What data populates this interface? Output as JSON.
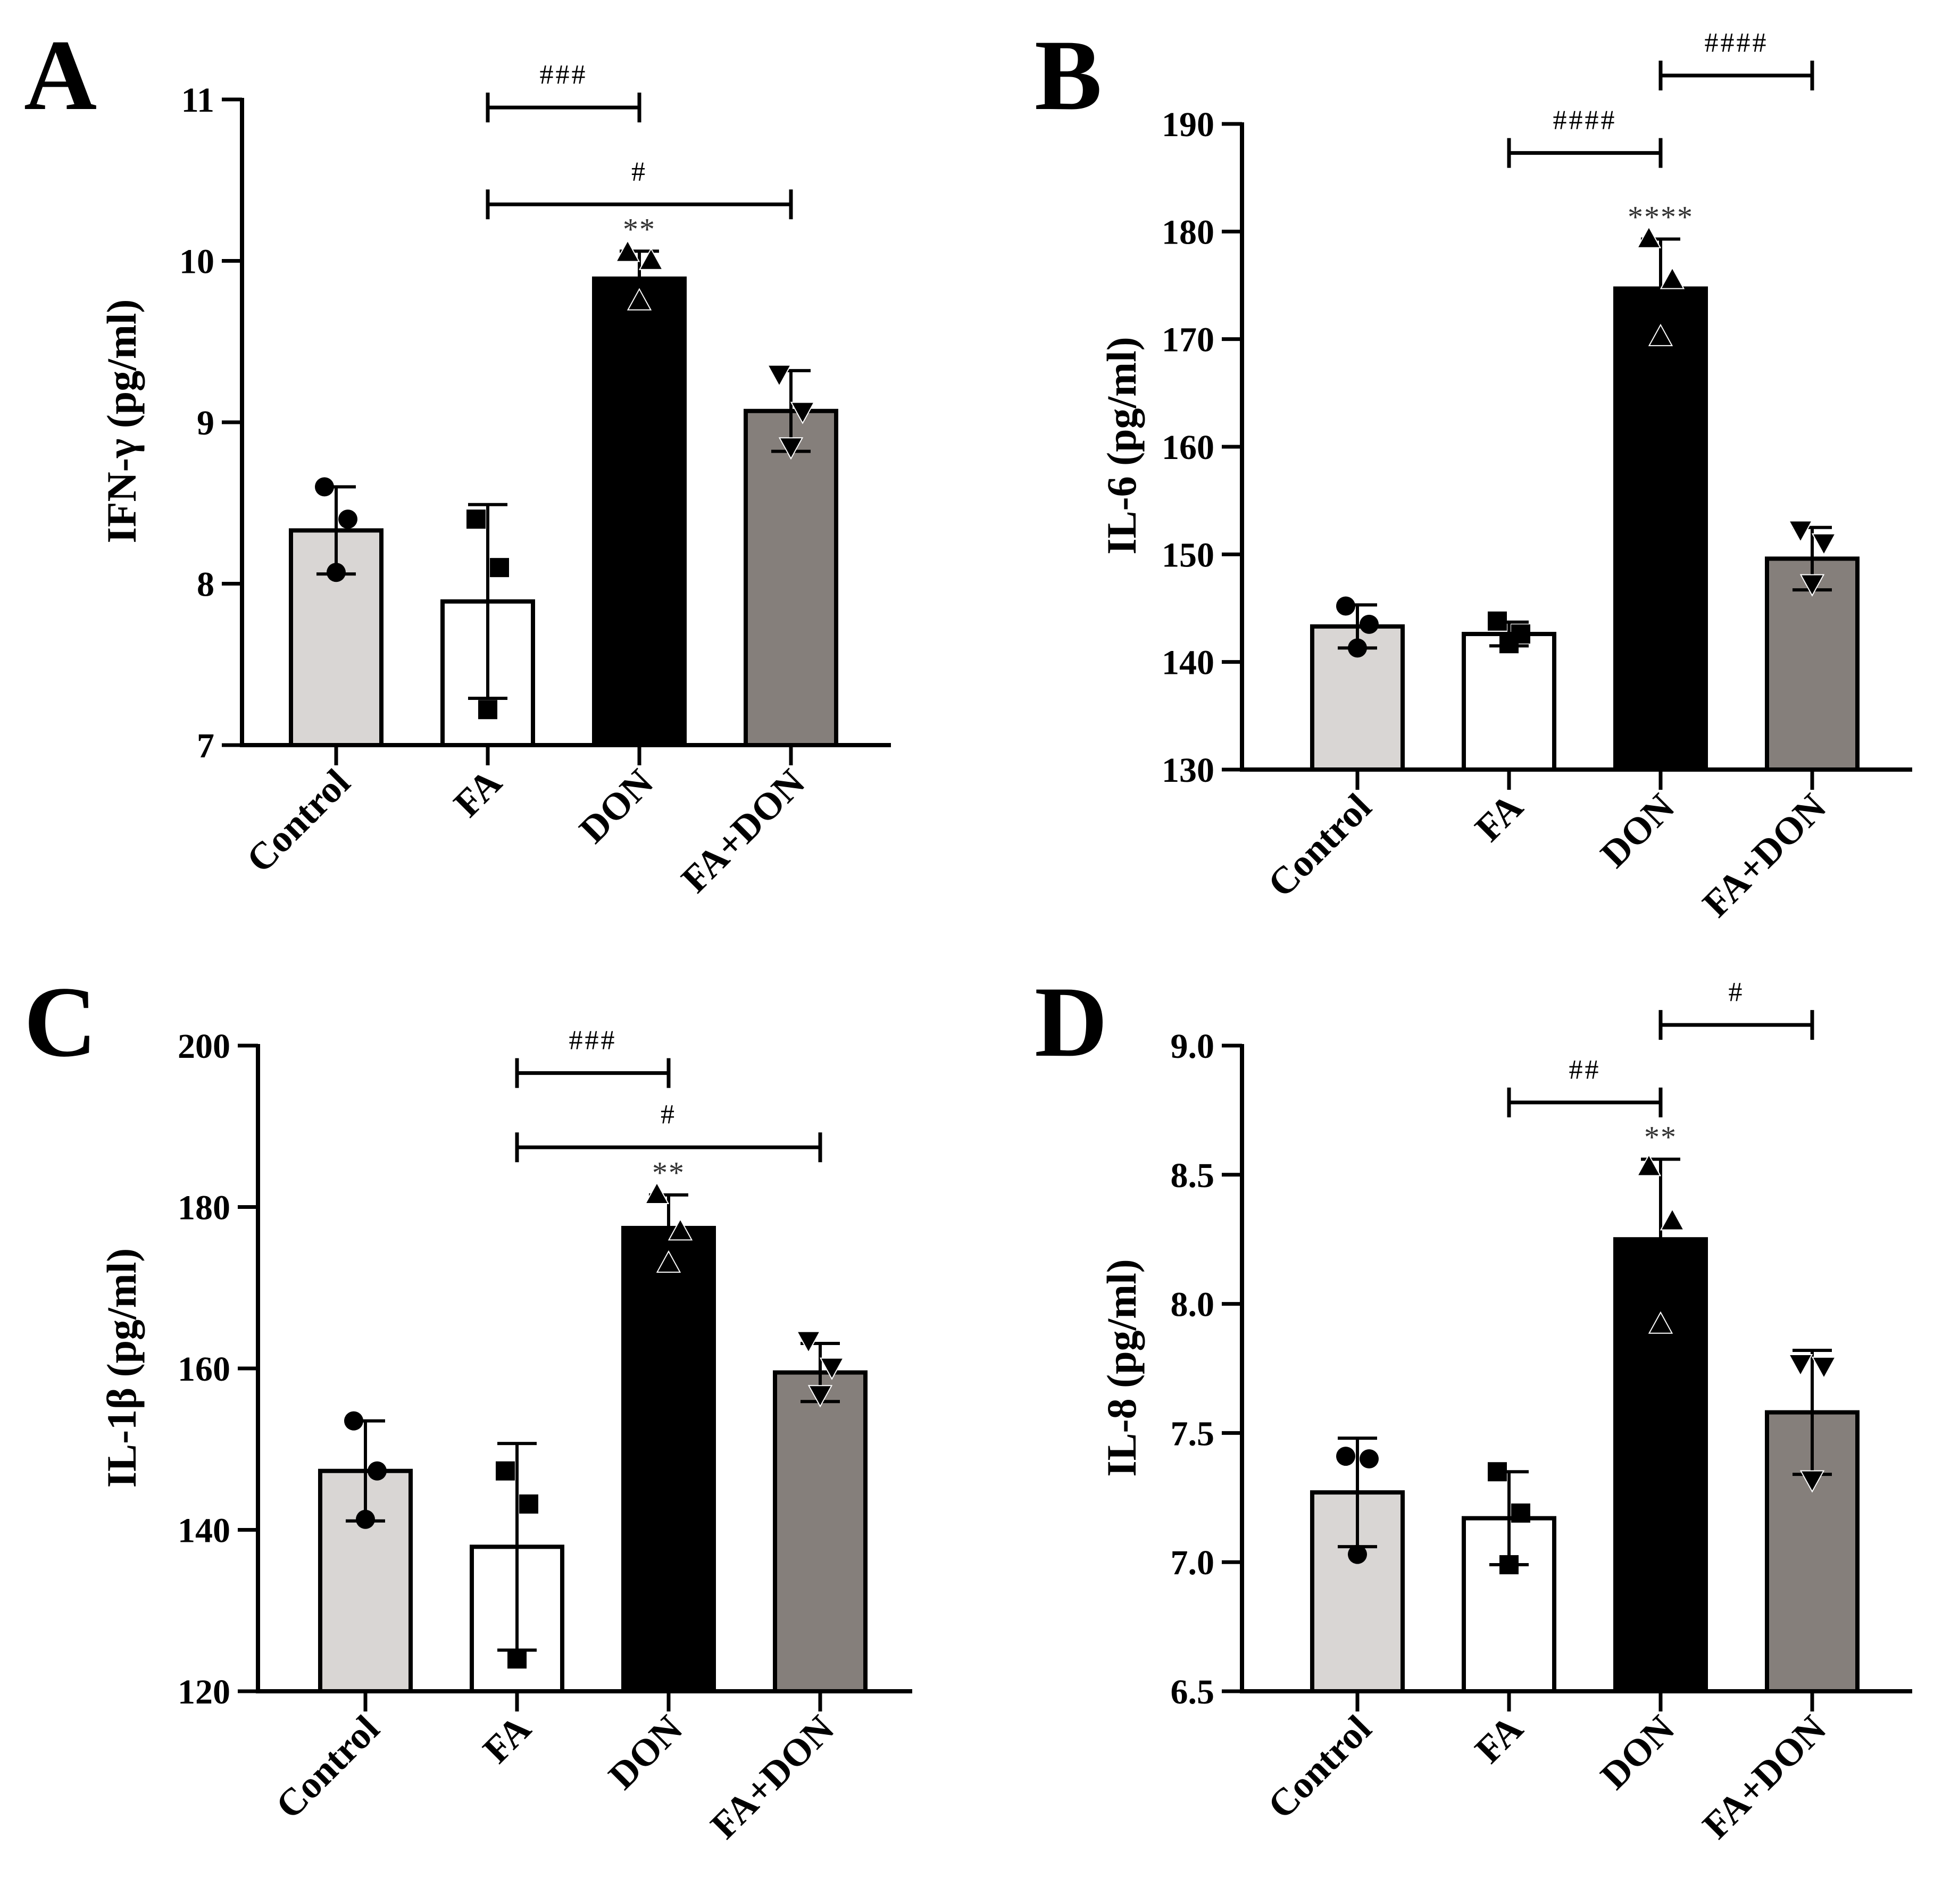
{
  "figure": {
    "background": "#ffffff",
    "axis_color": "#000000"
  },
  "chart_data": [
    {
      "panel": "A",
      "type": "bar",
      "ylabel": "IFN-γ (pg/ml)",
      "ylim": [
        7,
        11
      ],
      "yticks": [
        7,
        8,
        9,
        10,
        11
      ],
      "tick_labels": [
        "7",
        "8",
        "9",
        "10",
        "11"
      ],
      "categories": [
        "Control",
        "FA",
        "DON",
        "FA+DON"
      ],
      "values": [
        8.33,
        7.89,
        9.89,
        9.07
      ],
      "errors": [
        0.27,
        0.6,
        0.17,
        0.25
      ],
      "points": [
        [
          8.6,
          8.4,
          8.07
        ],
        [
          8.4,
          8.1,
          7.22
        ],
        [
          10.05,
          10.0,
          9.75
        ],
        [
          9.3,
          9.07,
          8.85
        ]
      ],
      "markers": [
        "circle",
        "square",
        "triangle-up",
        "triangle-down"
      ],
      "colors": [
        "#d9d6d4",
        "#ffffff",
        "#000000",
        "#857f7b"
      ],
      "stars": [
        "",
        "",
        "**",
        ""
      ],
      "brackets": [
        {
          "from": 1,
          "to": 2,
          "y": 10.95,
          "label": "###"
        },
        {
          "from": 1,
          "to": 3,
          "y": 10.35,
          "label": "#"
        }
      ]
    },
    {
      "panel": "B",
      "type": "bar",
      "ylabel": "IL-6 (pg/ml)",
      "ylim": [
        130,
        190
      ],
      "yticks": [
        130,
        140,
        150,
        160,
        170,
        180,
        190
      ],
      "tick_labels": [
        "130",
        "140",
        "150",
        "160",
        "170",
        "180",
        "190"
      ],
      "categories": [
        "Control",
        "FA",
        "DON",
        "FA+DON"
      ],
      "values": [
        143.3,
        142.6,
        174.7,
        149.6
      ],
      "errors": [
        2.0,
        1.1,
        4.6,
        2.9
      ],
      "points": [
        [
          145.2,
          143.5,
          141.3
        ],
        [
          143.8,
          142.6,
          141.7
        ],
        [
          179.3,
          175.5,
          170.2
        ],
        [
          152.3,
          151.1,
          147.3
        ]
      ],
      "markers": [
        "circle",
        "square",
        "triangle-up",
        "triangle-down"
      ],
      "colors": [
        "#d9d6d4",
        "#ffffff",
        "#000000",
        "#857f7b"
      ],
      "stars": [
        "",
        "",
        "****",
        ""
      ],
      "brackets": [
        {
          "from": 1,
          "to": 2,
          "y": 187.3,
          "label": "####"
        },
        {
          "from": 2,
          "to": 3,
          "y": 194.5,
          "label": "####"
        }
      ]
    },
    {
      "panel": "C",
      "type": "bar",
      "ylabel": "IL-1β (pg/ml)",
      "ylim": [
        120,
        200
      ],
      "yticks": [
        120,
        140,
        160,
        180,
        200
      ],
      "tick_labels": [
        "120",
        "140",
        "160",
        "180",
        "200"
      ],
      "categories": [
        "Control",
        "FA",
        "DON",
        "FA+DON"
      ],
      "values": [
        147.3,
        137.9,
        177.4,
        159.5
      ],
      "errors": [
        6.2,
        12.8,
        4.1,
        3.6
      ],
      "points": [
        [
          153.5,
          147.3,
          141.3
        ],
        [
          147.3,
          143.2,
          124.0
        ],
        [
          181.5,
          177.0,
          173.0
        ],
        [
          163.5,
          160.2,
          156.8
        ]
      ],
      "markers": [
        "circle",
        "square",
        "triangle-up",
        "triangle-down"
      ],
      "colors": [
        "#d9d6d4",
        "#ffffff",
        "#000000",
        "#857f7b"
      ],
      "stars": [
        "",
        "",
        "**",
        ""
      ],
      "brackets": [
        {
          "from": 1,
          "to": 2,
          "y": 196.6,
          "label": "###"
        },
        {
          "from": 1,
          "to": 3,
          "y": 187.4,
          "label": "#"
        }
      ]
    },
    {
      "panel": "D",
      "type": "bar",
      "ylabel": "IL-8 (pg/ml)",
      "ylim": [
        6.5,
        9.0
      ],
      "yticks": [
        6.5,
        7.0,
        7.5,
        8.0,
        8.5,
        9.0
      ],
      "tick_labels": [
        "6.5",
        "7.0",
        "7.5",
        "8.0",
        "8.5",
        "9.0"
      ],
      "categories": [
        "Control",
        "FA",
        "DON",
        "FA+DON"
      ],
      "values": [
        7.27,
        7.17,
        8.25,
        7.58
      ],
      "errors": [
        0.21,
        0.18,
        0.31,
        0.24
      ],
      "points": [
        [
          7.41,
          7.4,
          7.03
        ],
        [
          7.35,
          7.19,
          6.99
        ],
        [
          8.53,
          8.32,
          7.92
        ],
        [
          7.77,
          7.76,
          7.32
        ]
      ],
      "markers": [
        "circle",
        "square",
        "triangle-up",
        "triangle-down"
      ],
      "colors": [
        "#d9d6d4",
        "#ffffff",
        "#000000",
        "#857f7b"
      ],
      "stars": [
        "",
        "",
        "**",
        ""
      ],
      "brackets": [
        {
          "from": 1,
          "to": 2,
          "y": 8.78,
          "label": "##"
        },
        {
          "from": 2,
          "to": 3,
          "y": 9.08,
          "label": "#"
        }
      ]
    }
  ]
}
